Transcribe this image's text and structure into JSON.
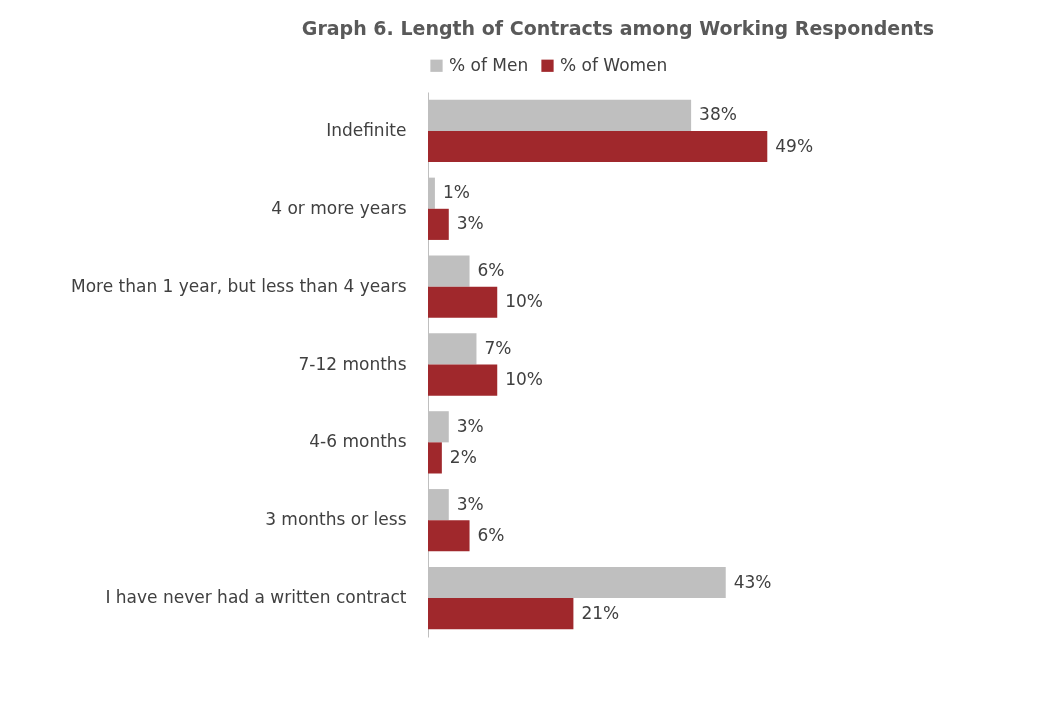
{
  "chart_data": {
    "type": "bar",
    "orientation": "horizontal",
    "title": "Graph 6. Length of Contracts among Working Respondents",
    "categories": [
      "Indefinite",
      "4 or more years",
      "More than 1 year, but less than 4 years",
      "7-12 months",
      "4-6 months",
      "3 months or less",
      "I have never had a written contract"
    ],
    "series": [
      {
        "name": "% of Men",
        "color": "#bfbfbf",
        "values": [
          38,
          1,
          6,
          7,
          3,
          3,
          43
        ],
        "value_labels": [
          "38%",
          "1%",
          "6%",
          "7%",
          "3%",
          "3%",
          "43%"
        ]
      },
      {
        "name": "% of Women",
        "color": "#a0282c",
        "values": [
          49,
          3,
          10,
          10,
          2,
          6,
          21
        ],
        "value_labels": [
          "49%",
          "3%",
          "10%",
          "10%",
          "2%",
          "6%",
          "21%"
        ]
      }
    ],
    "legend": "top"
  }
}
